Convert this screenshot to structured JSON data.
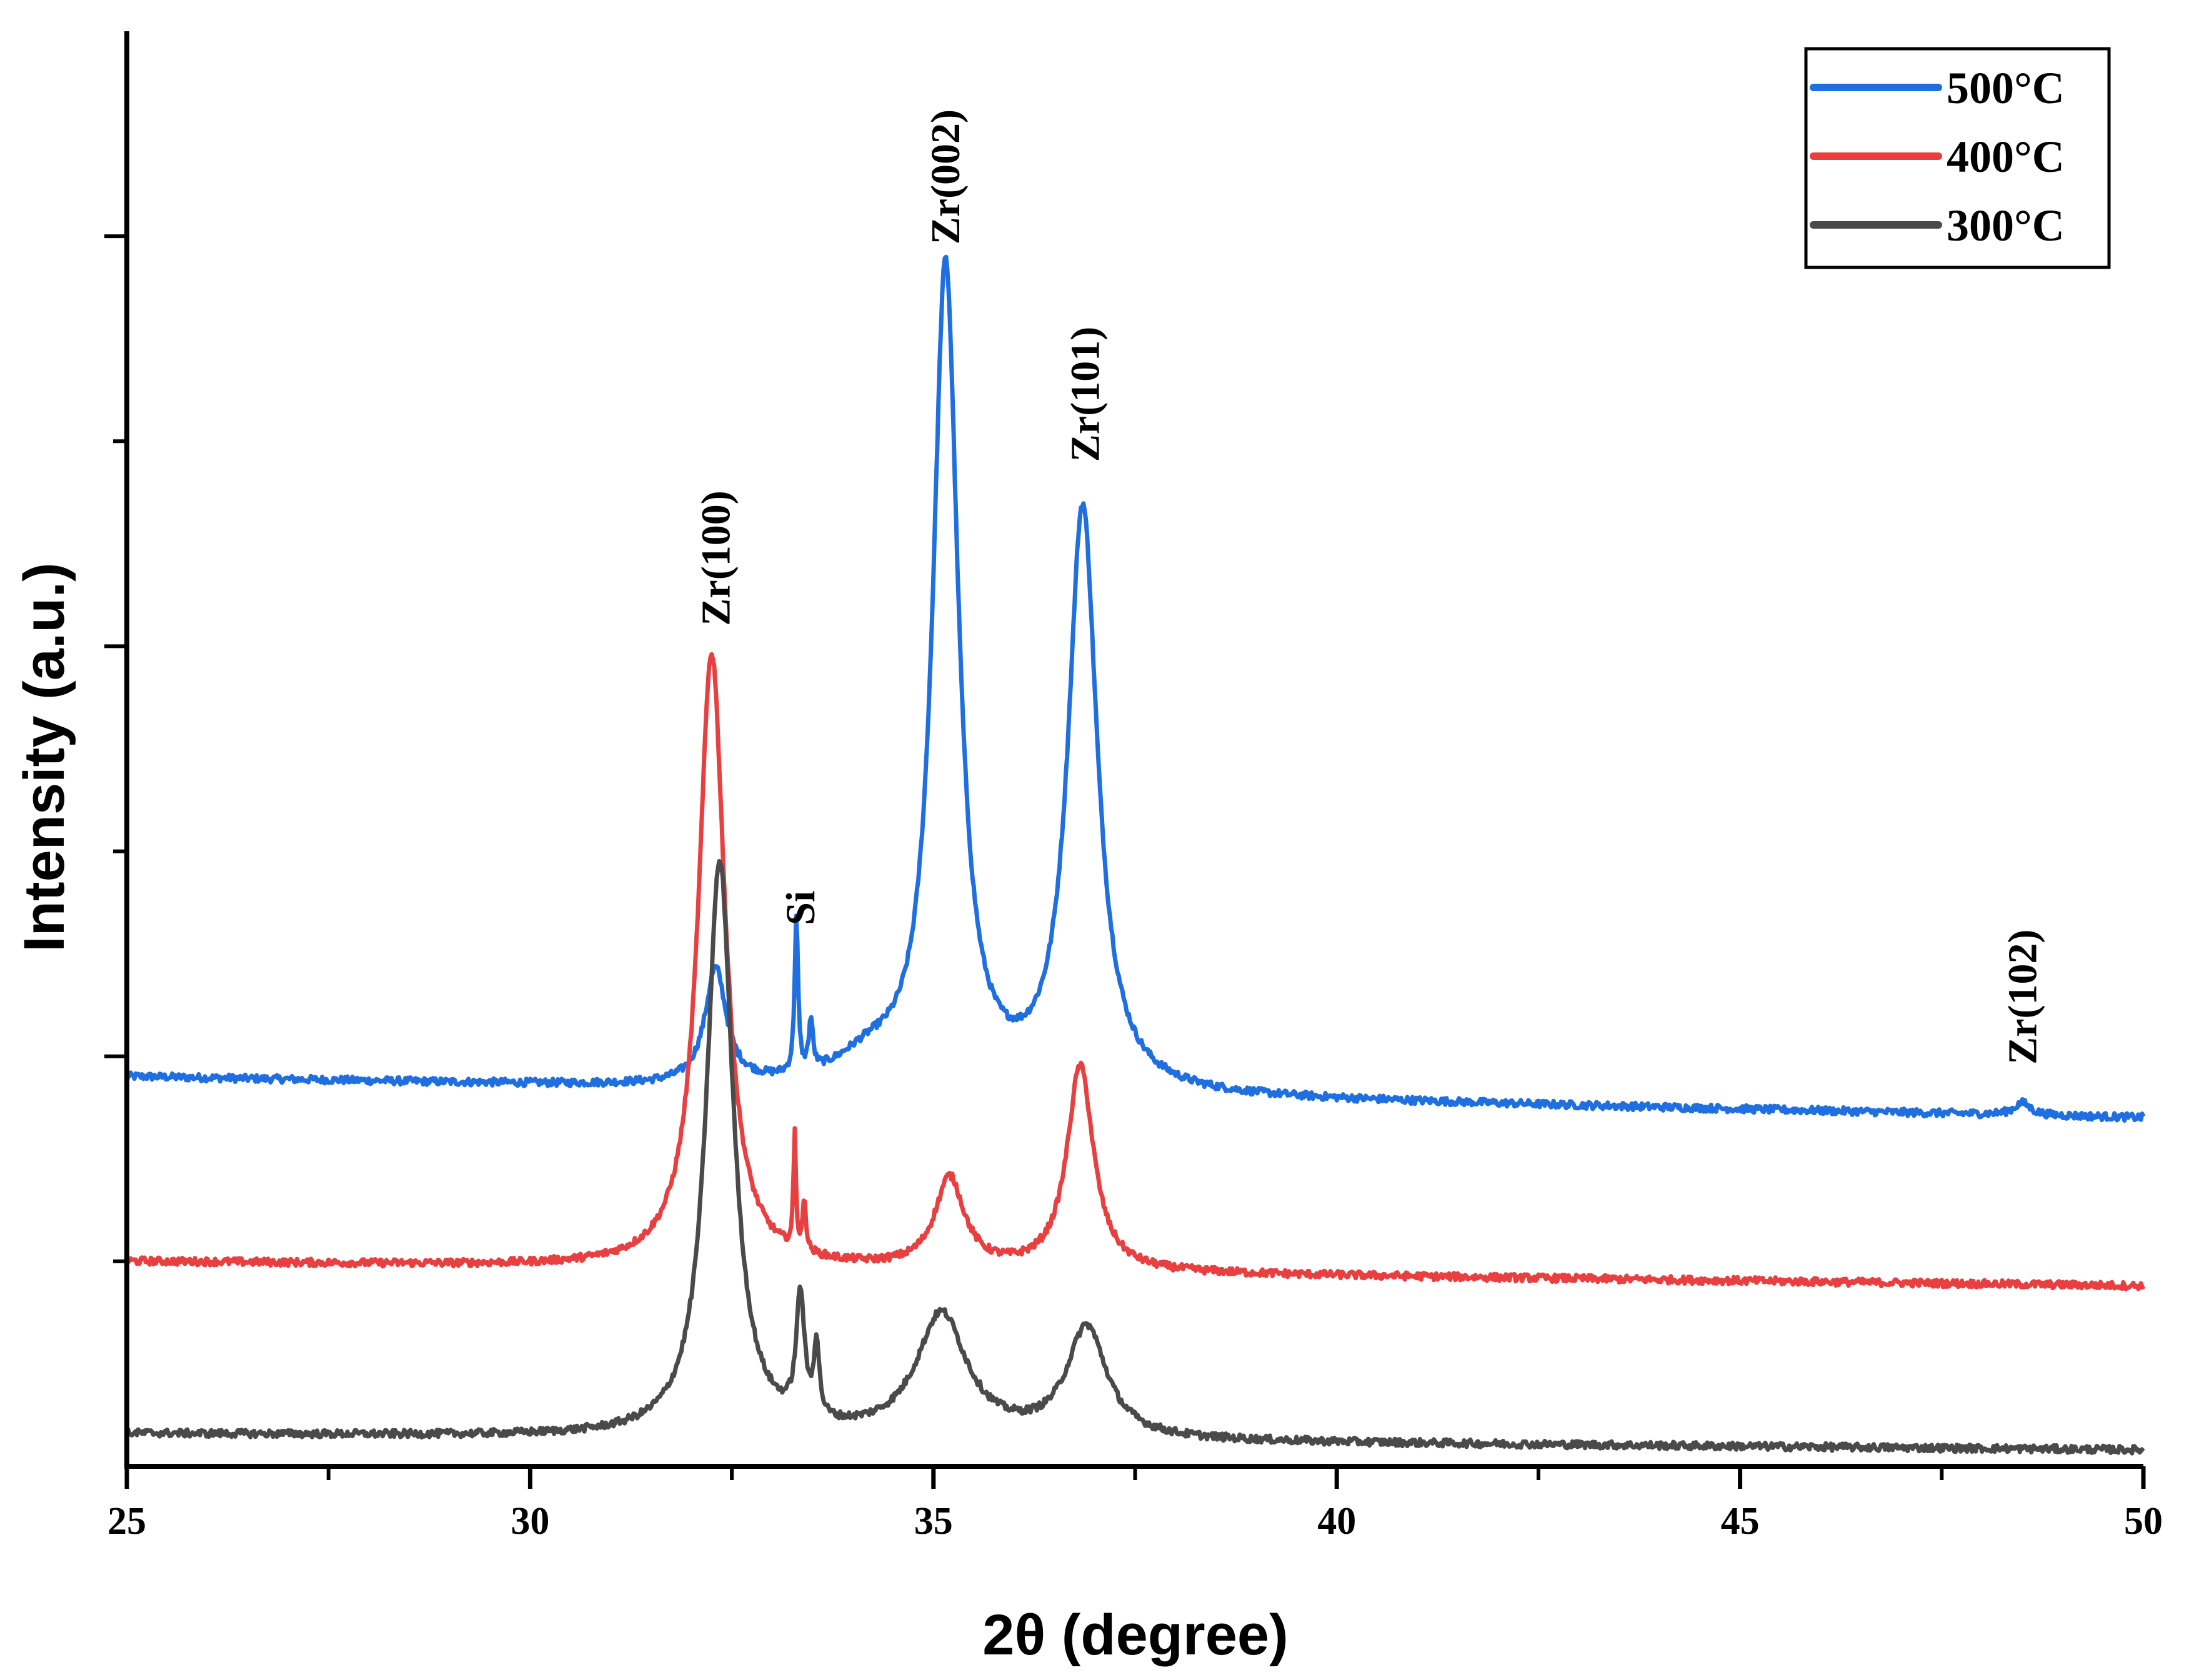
{
  "chart_data": {
    "type": "line",
    "title": "",
    "xlabel": "2θ (degree)",
    "ylabel": "Intensity (a.u.)",
    "xlim": [
      25,
      50
    ],
    "ylim": [
      0,
      3.5
    ],
    "xticks": [
      25,
      30,
      35,
      40,
      45,
      50
    ],
    "xtick_labels": [
      "25",
      "30",
      "35",
      "40",
      "45",
      "50"
    ],
    "y_tick_labels_shown": false,
    "grid": false,
    "legend_position": "top-right",
    "series": [
      {
        "name": "500°C",
        "color": "#1f6fe0",
        "baseline_start": 0.95,
        "baseline_end": 0.85,
        "peaks": [
          {
            "x": 32.3,
            "height": 0.28,
            "width": 0.16
          },
          {
            "x": 33.3,
            "height": 0.38,
            "width": 0.025
          },
          {
            "x": 33.48,
            "height": 0.12,
            "width": 0.03
          },
          {
            "x": 34.2,
            "height": 0.06,
            "width": 0.5
          },
          {
            "x": 35.15,
            "height": 2.0,
            "width": 0.19
          },
          {
            "x": 36.85,
            "height": 1.42,
            "width": 0.22
          },
          {
            "x": 48.5,
            "height": 0.03,
            "width": 0.12
          }
        ]
      },
      {
        "name": "400°C",
        "color": "#e84040",
        "baseline_start": 0.5,
        "baseline_end": 0.44,
        "peaks": [
          {
            "x": 32.25,
            "height": 1.5,
            "width": 0.2
          },
          {
            "x": 33.28,
            "height": 0.28,
            "width": 0.018
          },
          {
            "x": 33.4,
            "height": 0.13,
            "width": 0.022
          },
          {
            "x": 35.2,
            "height": 0.22,
            "width": 0.22
          },
          {
            "x": 36.82,
            "height": 0.5,
            "width": 0.2
          }
        ]
      },
      {
        "name": "300°C",
        "color": "#4a4a4a",
        "baseline_start": 0.08,
        "baseline_end": 0.04,
        "peaks": [
          {
            "x": 32.35,
            "height": 1.4,
            "width": 0.2
          },
          {
            "x": 33.35,
            "height": 0.3,
            "width": 0.06
          },
          {
            "x": 33.55,
            "height": 0.18,
            "width": 0.04
          },
          {
            "x": 35.1,
            "height": 0.3,
            "width": 0.38
          },
          {
            "x": 36.9,
            "height": 0.27,
            "width": 0.3
          }
        ]
      }
    ],
    "annotations": [
      {
        "text": "Zr(100)",
        "x": 32.3,
        "y": 2.05
      },
      {
        "text": "Si",
        "x": 33.35,
        "y": 1.32
      },
      {
        "text": "Zr(002)",
        "x": 35.15,
        "y": 2.98
      },
      {
        "text": "Zr(101)",
        "x": 36.88,
        "y": 2.45
      },
      {
        "text": "Zr(102)",
        "x": 48.5,
        "y": 0.98
      }
    ]
  }
}
